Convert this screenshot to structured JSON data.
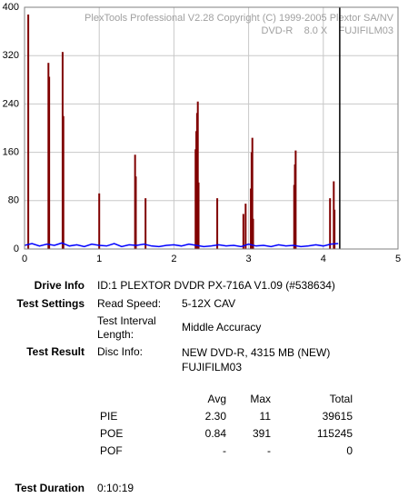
{
  "chart_data": {
    "type": "bar",
    "title": "PlexTools Professional V2.28 Copyright (C) 1999-2005 Plextor SA/NV",
    "subtitle": "DVD-R    8.0 X    FUJIFILM03",
    "xlim": [
      0,
      5
    ],
    "xticks": [
      0,
      1,
      2,
      3,
      4,
      5
    ],
    "ylim": [
      0,
      400
    ],
    "yticks": [
      0,
      80,
      160,
      240,
      320,
      400
    ],
    "grid": true,
    "series": [
      {
        "type": "bar",
        "color": "#800000",
        "x": [
          0.05,
          0.32,
          0.33,
          0.51,
          0.52,
          1.0,
          1.48,
          1.49,
          1.62,
          2.29,
          2.3,
          2.31,
          2.32,
          2.33,
          2.58,
          2.93,
          2.96,
          3.03,
          3.04,
          3.05,
          3.06,
          3.61,
          3.62,
          3.63,
          4.09,
          4.14,
          4.15
        ],
        "values": [
          388,
          308,
          285,
          326,
          220,
          92,
          156,
          120,
          84,
          165,
          195,
          225,
          244,
          110,
          84,
          58,
          75,
          100,
          160,
          184,
          50,
          106,
          140,
          163,
          84,
          112,
          65
        ]
      },
      {
        "type": "line",
        "color": "#0000ff",
        "x": [
          0,
          0.1,
          0.2,
          0.3,
          0.4,
          0.5,
          0.6,
          0.7,
          0.8,
          0.9,
          1.0,
          1.1,
          1.2,
          1.3,
          1.4,
          1.5,
          1.6,
          1.7,
          1.8,
          1.9,
          2.0,
          2.1,
          2.2,
          2.3,
          2.4,
          2.5,
          2.6,
          2.7,
          2.8,
          2.9,
          3.0,
          3.1,
          3.2,
          3.3,
          3.4,
          3.5,
          3.6,
          3.7,
          3.8,
          3.9,
          4.0,
          4.1,
          4.2
        ],
        "values": [
          6,
          9,
          5,
          8,
          6,
          10,
          5,
          7,
          4,
          8,
          6,
          5,
          9,
          4,
          7,
          6,
          8,
          5,
          4,
          6,
          7,
          5,
          8,
          6,
          4,
          5,
          7,
          5,
          6,
          4,
          8,
          5,
          6,
          4,
          7,
          5,
          6,
          4,
          5,
          7,
          5,
          8,
          9
        ]
      }
    ],
    "marker_x": 4.22
  },
  "report": {
    "drive_info": {
      "label": "Drive Info",
      "value": "ID:1 PLEXTOR DVDR PX-716A V1.09 (#538634)"
    },
    "test_settings": {
      "label": "Test Settings",
      "rows": [
        [
          "Read Speed:",
          "5-12X CAV"
        ],
        [
          "Test Interval Length:",
          "Middle Accuracy"
        ]
      ]
    },
    "test_result": {
      "label": "Test Result",
      "key": "Disc Info:",
      "value": "NEW DVD-R, 4315 MB (NEW) FUJIFILM03"
    },
    "table": {
      "headers": [
        "Avg",
        "Max",
        "Total"
      ],
      "rows": [
        [
          "PIE",
          "2.30",
          "11",
          "39615"
        ],
        [
          "POE",
          "0.84",
          "391",
          "115245"
        ],
        [
          "POF",
          "-",
          "-",
          "0"
        ]
      ]
    },
    "test_duration": {
      "label": "Test Duration",
      "value": "0:10:19"
    }
  }
}
